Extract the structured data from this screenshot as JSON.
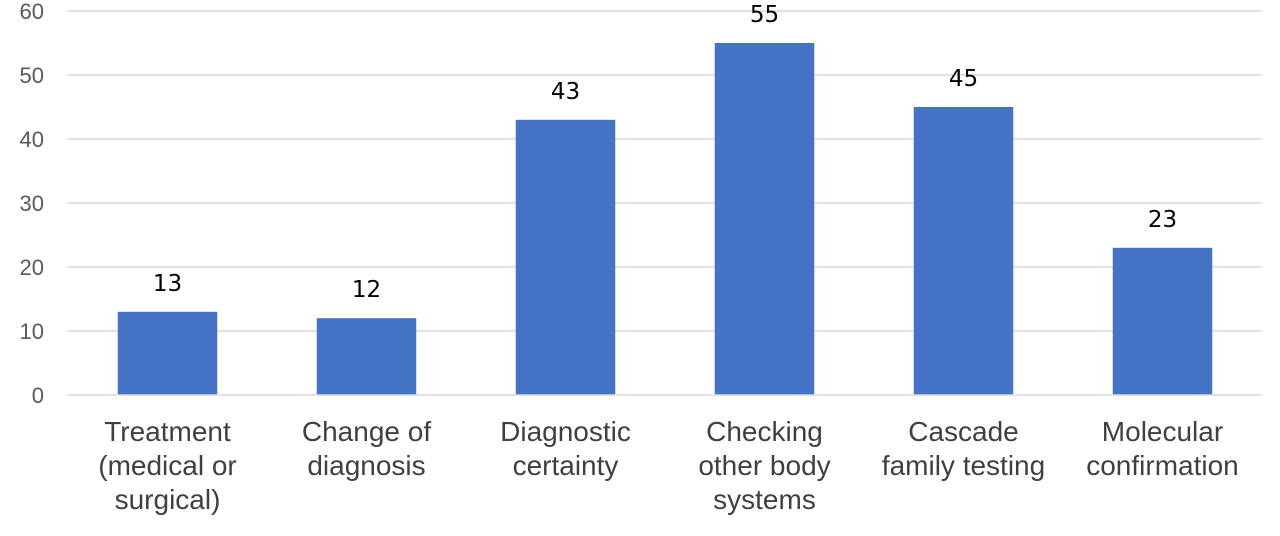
{
  "chart_data": {
    "type": "bar",
    "title": "",
    "xlabel": "",
    "ylabel": "",
    "categories": [
      [
        "Treatment",
        "(medical or",
        "surgical)"
      ],
      [
        "Change of",
        "diagnosis"
      ],
      [
        "Diagnostic",
        "certainty"
      ],
      [
        "Checking",
        "other body",
        "systems"
      ],
      [
        "Cascade",
        "family testing"
      ],
      [
        "Molecular",
        "confirmation"
      ]
    ],
    "values": [
      13,
      12,
      43,
      55,
      45,
      23
    ],
    "ylim": [
      0,
      60
    ],
    "yticks": [
      0,
      10,
      20,
      30,
      40,
      50,
      60
    ],
    "grid": true,
    "legend": "none",
    "bar_color": "#4472c4"
  }
}
